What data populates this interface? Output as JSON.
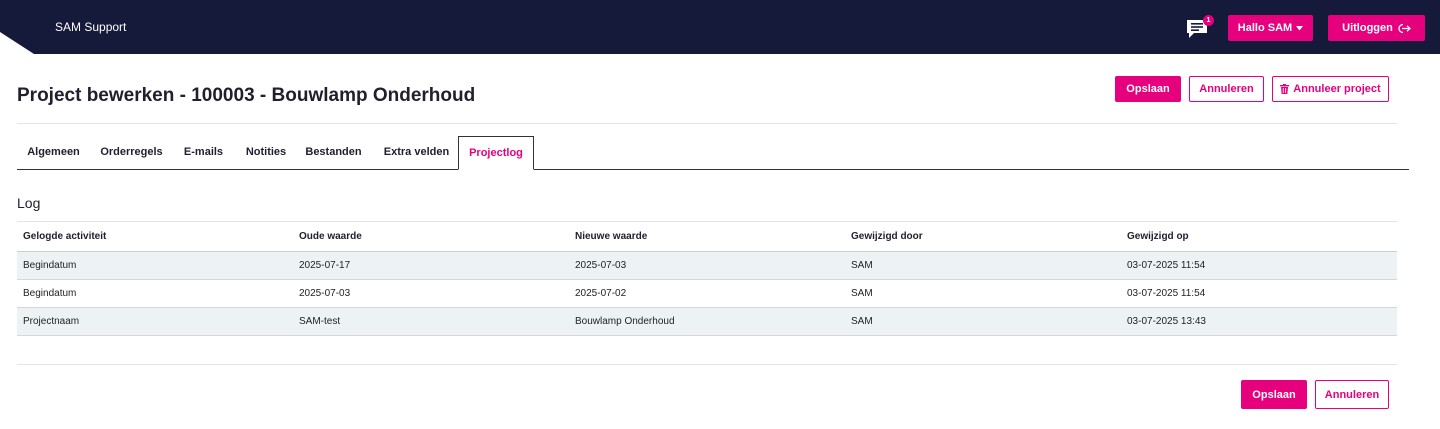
{
  "header": {
    "brand": "SAM Support",
    "badge_count": "1",
    "hello_label": "Hallo SAM",
    "logout_label": "Uitloggen"
  },
  "page": {
    "title": "Project bewerken - 100003 - Bouwlamp Onderhoud",
    "save_label": "Opslaan",
    "cancel_label": "Annuleren",
    "cancel_project_label": "Annuleer project"
  },
  "tabs": [
    {
      "label": "Algemeen",
      "active": false
    },
    {
      "label": "Orderregels",
      "active": false
    },
    {
      "label": "E-mails",
      "active": false
    },
    {
      "label": "Notities",
      "active": false
    },
    {
      "label": "Bestanden",
      "active": false
    },
    {
      "label": "Extra velden",
      "active": false
    },
    {
      "label": "Projectlog",
      "active": true
    }
  ],
  "log": {
    "title": "Log",
    "columns": [
      "Gelogde activiteit",
      "Oude waarde",
      "Nieuwe waarde",
      "Gewijzigd door",
      "Gewijzigd op"
    ],
    "rows": [
      [
        "Begindatum",
        "2025-07-17",
        "2025-07-03",
        "SAM",
        "03-07-2025 11:54"
      ],
      [
        "Begindatum",
        "2025-07-03",
        "2025-07-02",
        "SAM",
        "03-07-2025 11:54"
      ],
      [
        "Projectnaam",
        "SAM-test",
        "Bouwlamp Onderhoud",
        "SAM",
        "03-07-2025 13:43"
      ]
    ]
  },
  "footer": {
    "save_label": "Opslaan",
    "cancel_label": "Annuleren"
  },
  "colors": {
    "accent": "#e6007e",
    "topbar": "#151a3b"
  }
}
